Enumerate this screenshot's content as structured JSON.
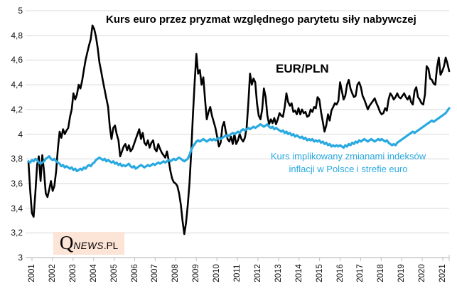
{
  "title": "Kurs euro przez pryzmat względnego parytetu siły nabywczej",
  "annotations": {
    "eur_pln": "EUR/PLN",
    "implied_line1": "Kurs implikowany zmianami indeksów",
    "implied_line2": "inflacji w Polsce i strefie euro"
  },
  "watermark": {
    "q": "Q",
    "news": "NEWS",
    "pl": ".PL"
  },
  "colors": {
    "eur_pln_line": "#000000",
    "implied_line": "#29A9E1",
    "gridline": "#D9D9D9",
    "axis_line": "#BFBFBF",
    "tick_label": "#111111",
    "watermark_bg": "#FCE4D6"
  },
  "chart_data": {
    "type": "line",
    "title": "Kurs euro przez pryzmat względnego parytetu siły nabywczej",
    "xlabel": "",
    "ylabel": "",
    "ylim": [
      3.0,
      5.0
    ],
    "y_tick_step": 0.2,
    "y_tick_labels": [
      "5",
      "4,8",
      "4,6",
      "4,4",
      "4,2",
      "4",
      "3,8",
      "3,6",
      "3,4",
      "3,2",
      "3"
    ],
    "x_tick_labels": [
      "2001",
      "2002",
      "2003",
      "2004",
      "2005",
      "2006",
      "2007",
      "2008",
      "2009",
      "2010",
      "2011",
      "2012",
      "2013",
      "2014",
      "2015",
      "2016",
      "2017",
      "2018",
      "2019",
      "2020",
      "2021"
    ],
    "x_start_year": 2001,
    "points_per_year": 12,
    "grid": true,
    "legend_position": "inline-annotations",
    "series": [
      {
        "name": "EUR/PLN",
        "color": "#000000",
        "width": 2.6,
        "values": [
          3.78,
          3.55,
          3.36,
          3.33,
          3.52,
          3.75,
          3.82,
          3.62,
          3.83,
          3.7,
          3.52,
          3.49,
          3.55,
          3.62,
          3.54,
          3.58,
          3.7,
          3.88,
          4.02,
          3.97,
          4.04,
          4.0,
          4.03,
          4.05,
          4.14,
          4.2,
          4.33,
          4.28,
          4.32,
          4.4,
          4.37,
          4.43,
          4.52,
          4.6,
          4.66,
          4.72,
          4.77,
          4.88,
          4.85,
          4.79,
          4.7,
          4.58,
          4.51,
          4.43,
          4.36,
          4.29,
          4.22,
          4.06,
          3.96,
          4.05,
          4.07,
          4.0,
          3.95,
          3.82,
          3.86,
          3.9,
          3.92,
          3.87,
          3.91,
          3.86,
          3.88,
          3.92,
          3.96,
          4.0,
          4.04,
          3.96,
          4.01,
          3.93,
          3.91,
          3.95,
          3.89,
          3.93,
          3.95,
          3.88,
          3.86,
          3.92,
          3.88,
          3.85,
          3.83,
          3.81,
          3.86,
          3.79,
          3.7,
          3.64,
          3.61,
          3.6,
          3.58,
          3.52,
          3.43,
          3.3,
          3.19,
          3.28,
          3.42,
          3.6,
          3.85,
          4.15,
          4.42,
          4.65,
          4.49,
          4.52,
          4.4,
          4.46,
          4.28,
          4.12,
          4.18,
          4.22,
          4.15,
          4.1,
          4.05,
          3.98,
          3.9,
          3.93,
          4.06,
          4.1,
          4.02,
          3.96,
          3.94,
          3.98,
          3.92,
          4.0,
          3.92,
          3.95,
          4.0,
          3.96,
          3.94,
          3.97,
          4.05,
          4.25,
          4.49,
          4.4,
          4.45,
          4.42,
          4.25,
          4.15,
          4.12,
          4.2,
          4.37,
          4.3,
          4.15,
          4.08,
          4.12,
          4.09,
          4.13,
          4.08,
          4.12,
          4.17,
          4.15,
          4.14,
          4.22,
          4.33,
          4.26,
          4.23,
          4.25,
          4.18,
          4.19,
          4.16,
          4.21,
          4.16,
          4.2,
          4.17,
          4.18,
          4.14,
          4.15,
          4.2,
          4.18,
          4.22,
          4.21,
          4.3,
          4.28,
          4.18,
          4.1,
          4.02,
          4.07,
          4.16,
          4.11,
          4.19,
          4.22,
          4.25,
          4.24,
          4.27,
          4.42,
          4.35,
          4.28,
          4.31,
          4.4,
          4.44,
          4.37,
          4.33,
          4.3,
          4.31,
          4.4,
          4.42,
          4.38,
          4.31,
          4.28,
          4.24,
          4.2,
          4.23,
          4.25,
          4.27,
          4.29,
          4.25,
          4.22,
          4.18,
          4.16,
          4.17,
          4.21,
          4.19,
          4.28,
          4.33,
          4.31,
          4.28,
          4.3,
          4.33,
          4.3,
          4.29,
          4.31,
          4.33,
          4.3,
          4.28,
          4.31,
          4.26,
          4.24,
          4.35,
          4.38,
          4.3,
          4.28,
          4.25,
          4.24,
          4.32,
          4.55,
          4.53,
          4.45,
          4.44,
          4.41,
          4.4,
          4.54,
          4.62,
          4.48,
          4.51,
          4.55,
          4.62,
          4.57,
          4.51
        ]
      },
      {
        "name": "Kurs implikowany zmianami indeksów inflacji w Polsce i strefie euro",
        "color": "#29A9E1",
        "width": 3.2,
        "values": [
          3.78,
          3.77,
          3.79,
          3.78,
          3.8,
          3.79,
          3.77,
          3.76,
          3.77,
          3.78,
          3.8,
          3.81,
          3.82,
          3.8,
          3.79,
          3.8,
          3.78,
          3.77,
          3.76,
          3.74,
          3.75,
          3.73,
          3.74,
          3.73,
          3.72,
          3.73,
          3.71,
          3.72,
          3.7,
          3.71,
          3.72,
          3.71,
          3.73,
          3.72,
          3.74,
          3.75,
          3.74,
          3.76,
          3.77,
          3.79,
          3.8,
          3.81,
          3.8,
          3.79,
          3.8,
          3.78,
          3.79,
          3.78,
          3.77,
          3.78,
          3.76,
          3.77,
          3.75,
          3.76,
          3.74,
          3.75,
          3.74,
          3.75,
          3.76,
          3.74,
          3.73,
          3.74,
          3.72,
          3.73,
          3.74,
          3.75,
          3.74,
          3.73,
          3.74,
          3.75,
          3.74,
          3.75,
          3.76,
          3.75,
          3.76,
          3.77,
          3.76,
          3.77,
          3.78,
          3.77,
          3.78,
          3.79,
          3.78,
          3.79,
          3.8,
          3.79,
          3.8,
          3.81,
          3.8,
          3.79,
          3.78,
          3.79,
          3.8,
          3.83,
          3.87,
          3.9,
          3.92,
          3.94,
          3.95,
          3.94,
          3.95,
          3.96,
          3.95,
          3.94,
          3.95,
          3.96,
          3.95,
          3.96,
          3.95,
          3.96,
          3.97,
          3.96,
          3.97,
          3.98,
          3.99,
          3.98,
          3.99,
          4.0,
          4.01,
          4.0,
          4.01,
          4.02,
          4.01,
          4.03,
          4.04,
          4.03,
          4.04,
          4.05,
          4.04,
          4.05,
          4.06,
          4.05,
          4.06,
          4.07,
          4.08,
          4.07,
          4.06,
          4.07,
          4.08,
          4.06,
          4.05,
          4.06,
          4.04,
          4.05,
          4.04,
          4.03,
          4.02,
          4.03,
          4.01,
          4.02,
          4.0,
          4.01,
          3.99,
          4.0,
          3.98,
          3.99,
          3.98,
          3.97,
          3.98,
          3.96,
          3.97,
          3.95,
          3.96,
          3.95,
          3.96,
          3.94,
          3.95,
          3.94,
          3.95,
          3.93,
          3.94,
          3.92,
          3.93,
          3.91,
          3.92,
          3.9,
          3.91,
          3.9,
          3.91,
          3.9,
          3.91,
          3.9,
          3.89,
          3.91,
          3.9,
          3.92,
          3.91,
          3.93,
          3.92,
          3.94,
          3.93,
          3.95,
          3.94,
          3.95,
          3.96,
          3.95,
          3.94,
          3.95,
          3.96,
          3.95,
          3.94,
          3.95,
          3.96,
          3.95,
          3.96,
          3.95,
          3.94,
          3.95,
          3.93,
          3.92,
          3.91,
          3.92,
          3.91,
          3.93,
          3.94,
          3.95,
          3.96,
          3.97,
          3.98,
          3.99,
          4.0,
          4.01,
          4.02,
          4.01,
          4.02,
          4.03,
          4.04,
          4.05,
          4.06,
          4.07,
          4.08,
          4.09,
          4.1,
          4.11,
          4.1,
          4.11,
          4.12,
          4.13,
          4.14,
          4.15,
          4.16,
          4.17,
          4.19,
          4.21
        ]
      }
    ]
  }
}
